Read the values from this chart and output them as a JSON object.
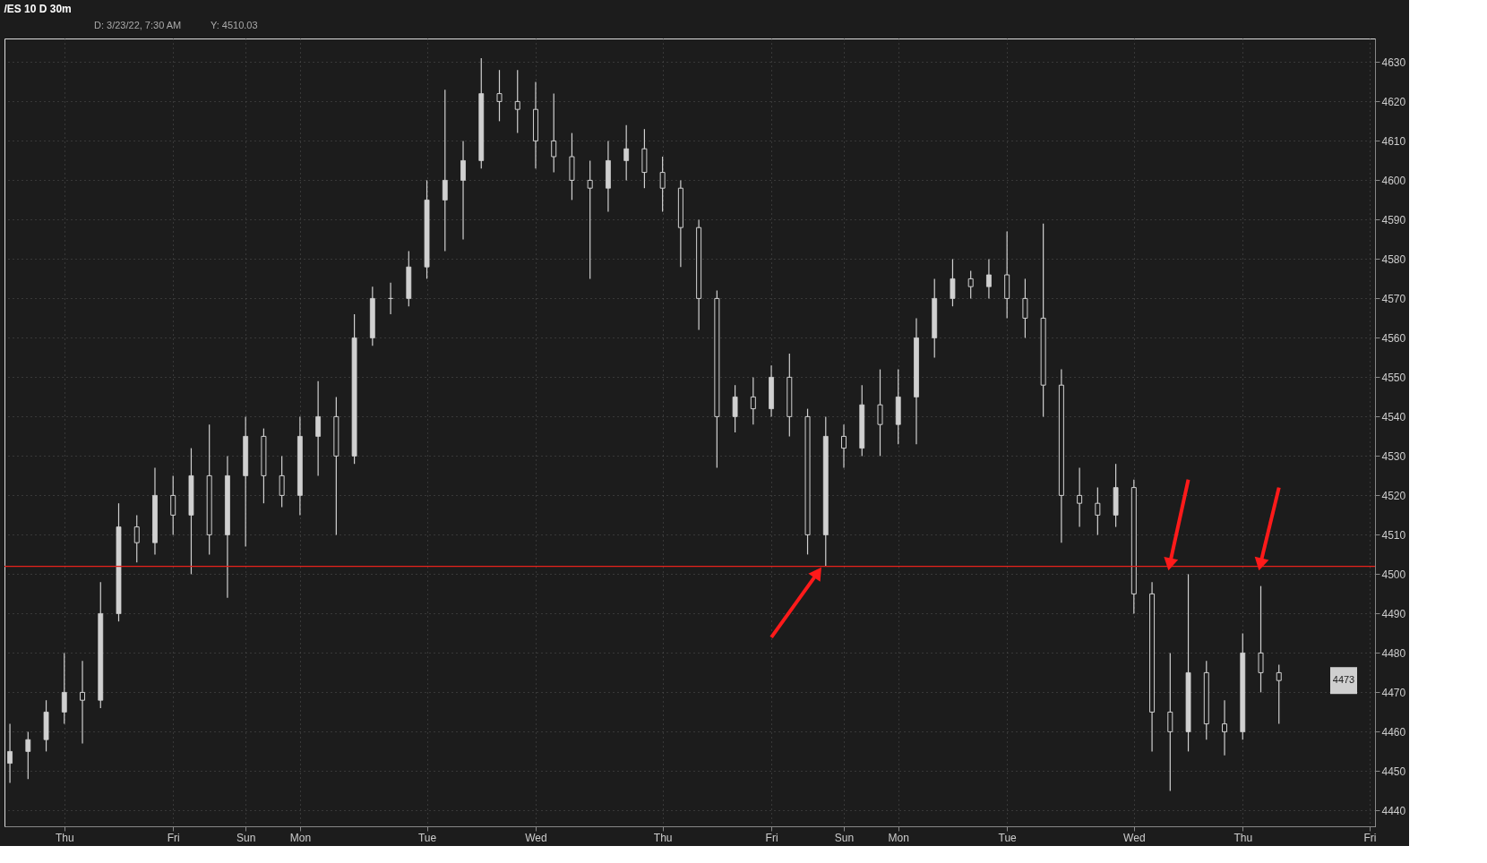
{
  "chart_data": {
    "type": "candlestick",
    "title": "/ES 10 D 30m",
    "annotations": [
      "D: 3/23/22, 7:30 AM",
      "Y: 4510.03",
      {
        "text": "4473",
        "y": 4473
      }
    ],
    "color": "#d0d0d0",
    "categories": [
      null,
      null,
      null,
      "Thu",
      null,
      null,
      null,
      null,
      null,
      "Fri",
      null,
      null,
      null,
      "Sun",
      null,
      null,
      "Mon",
      null,
      null,
      null,
      null,
      null,
      null,
      "Tue",
      null,
      null,
      null,
      null,
      null,
      "Wed",
      null,
      null,
      null,
      null,
      null,
      null,
      "Thu",
      null,
      null,
      null,
      null,
      null,
      "Fri",
      null,
      null,
      null,
      "Sun",
      null,
      null,
      "Mon",
      null,
      null,
      null,
      null,
      null,
      "Tue",
      null,
      null,
      null,
      null,
      null,
      null,
      "Wed",
      null,
      null,
      null,
      null,
      null,
      "Thu",
      null,
      null,
      null,
      null,
      null,
      null,
      "Fri"
    ],
    "ohlc": [
      [
        4452,
        4462,
        4447,
        4455
      ],
      [
        4455,
        4460,
        4448,
        4458
      ],
      [
        4458,
        4468,
        4455,
        4465
      ],
      [
        4465,
        4480,
        4462,
        4470
      ],
      [
        4470,
        4478,
        4457,
        4468
      ],
      [
        4468,
        4498,
        4466,
        4490
      ],
      [
        4490,
        4518,
        4488,
        4512
      ],
      [
        4512,
        4515,
        4503,
        4508
      ],
      [
        4508,
        4527,
        4505,
        4520
      ],
      [
        4520,
        4525,
        4510,
        4515
      ],
      [
        4515,
        4532,
        4500,
        4525
      ],
      [
        4525,
        4538,
        4505,
        4510
      ],
      [
        4510,
        4530,
        4494,
        4525
      ],
      [
        4525,
        4540,
        4507,
        4535
      ],
      [
        4535,
        4537,
        4518,
        4525
      ],
      [
        4525,
        4530,
        4517,
        4520
      ],
      [
        4520,
        4540,
        4515,
        4535
      ],
      [
        4535,
        4549,
        4525,
        4540
      ],
      [
        4540,
        4545,
        4510,
        4530
      ],
      [
        4530,
        4566,
        4528,
        4560
      ],
      [
        4560,
        4573,
        4558,
        4570
      ],
      [
        4570,
        4574,
        4566,
        4570
      ],
      [
        4570,
        4582,
        4568,
        4578
      ],
      [
        4578,
        4600,
        4575,
        4595
      ],
      [
        4595,
        4623,
        4582,
        4600
      ],
      [
        4600,
        4610,
        4585,
        4605
      ],
      [
        4605,
        4631,
        4603,
        4622
      ],
      [
        4622,
        4628,
        4615,
        4620
      ],
      [
        4620,
        4628,
        4612,
        4618
      ],
      [
        4618,
        4625,
        4603,
        4610
      ],
      [
        4610,
        4622,
        4602,
        4606
      ],
      [
        4606,
        4612,
        4595,
        4600
      ],
      [
        4600,
        4605,
        4575,
        4598
      ],
      [
        4598,
        4610,
        4592,
        4605
      ],
      [
        4605,
        4614,
        4600,
        4608
      ],
      [
        4608,
        4613,
        4598,
        4602
      ],
      [
        4602,
        4606,
        4592,
        4598
      ],
      [
        4598,
        4600,
        4578,
        4588
      ],
      [
        4588,
        4590,
        4562,
        4570
      ],
      [
        4570,
        4572,
        4527,
        4540
      ],
      [
        4540,
        4548,
        4536,
        4545
      ],
      [
        4545,
        4550,
        4538,
        4542
      ],
      [
        4542,
        4553,
        4540,
        4550
      ],
      [
        4550,
        4556,
        4535,
        4540
      ],
      [
        4540,
        4542,
        4505,
        4510
      ],
      [
        4510,
        4540,
        4502,
        4535
      ],
      [
        4535,
        4538,
        4527,
        4532
      ],
      [
        4532,
        4548,
        4530,
        4543
      ],
      [
        4543,
        4552,
        4530,
        4538
      ],
      [
        4538,
        4552,
        4533,
        4545
      ],
      [
        4545,
        4565,
        4533,
        4560
      ],
      [
        4560,
        4575,
        4555,
        4570
      ],
      [
        4570,
        4580,
        4568,
        4575
      ],
      [
        4575,
        4577,
        4570,
        4573
      ],
      [
        4573,
        4580,
        4570,
        4576
      ],
      [
        4576,
        4587,
        4565,
        4570
      ],
      [
        4570,
        4575,
        4560,
        4565
      ],
      [
        4565,
        4589,
        4540,
        4548
      ],
      [
        4548,
        4552,
        4508,
        4520
      ],
      [
        4520,
        4527,
        4512,
        4518
      ],
      [
        4518,
        4522,
        4510,
        4515
      ],
      [
        4515,
        4528,
        4512,
        4522
      ],
      [
        4522,
        4524,
        4490,
        4495
      ],
      [
        4495,
        4498,
        4455,
        4465
      ],
      [
        4465,
        4480,
        4445,
        4460
      ],
      [
        4460,
        4500,
        4455,
        4475
      ],
      [
        4475,
        4478,
        4458,
        4462
      ],
      [
        4462,
        4468,
        4454,
        4460
      ],
      [
        4460,
        4485,
        4458,
        4480
      ],
      [
        4480,
        4497,
        4470,
        4475
      ],
      [
        4475,
        4477,
        4462,
        4473
      ],
      null,
      null,
      null,
      null,
      null
    ],
    "ref_lines": [
      {
        "axis": "y",
        "value": 4502,
        "color": "#e8221b"
      }
    ],
    "ylim": [
      4436,
      4636
    ],
    "yticks": [
      4440,
      4450,
      4460,
      4470,
      4480,
      4490,
      4500,
      4510,
      4520,
      4530,
      4540,
      4550,
      4560,
      4570,
      4580,
      4590,
      4600,
      4610,
      4620,
      4630
    ],
    "grid": true
  }
}
